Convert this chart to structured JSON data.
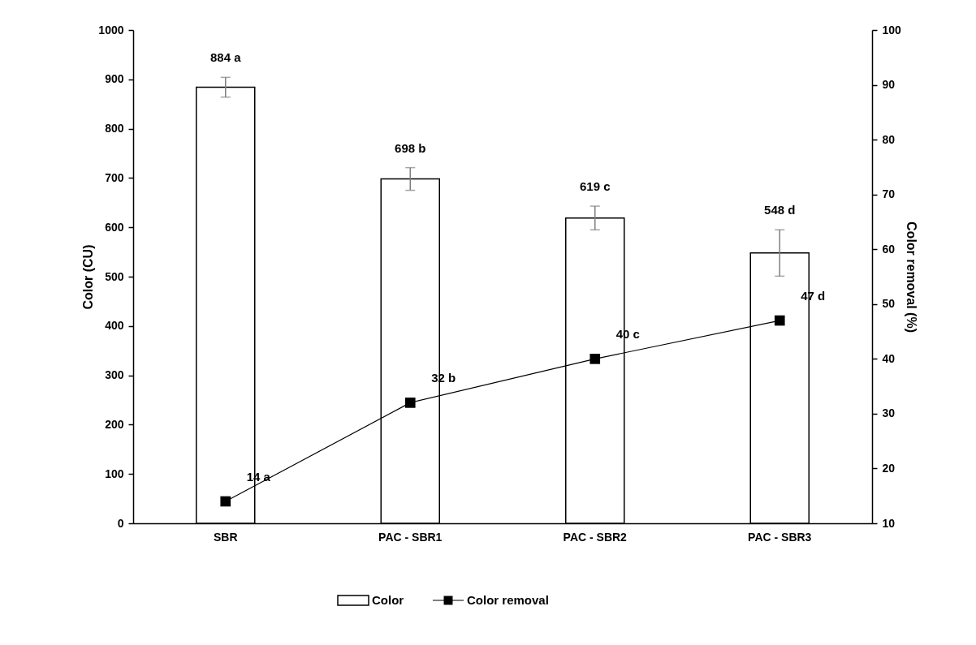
{
  "chart_data": {
    "type": "bar",
    "categories": [
      "SBR",
      "PAC - SBR1",
      "PAC - SBR2",
      "PAC - SBR3"
    ],
    "ylabel": "Color (CU)",
    "y2label": "Color removal (%)",
    "ylim": [
      0,
      1000
    ],
    "yticks": [
      0,
      100,
      200,
      300,
      400,
      500,
      600,
      700,
      800,
      900,
      1000
    ],
    "y2lim": [
      10,
      100
    ],
    "y2ticks": [
      10,
      20,
      30,
      40,
      50,
      60,
      70,
      80,
      90,
      100
    ],
    "series": [
      {
        "name": "Color",
        "color": "#ffffff",
        "values": [
          884,
          698,
          619,
          548
        ],
        "errors": [
          20,
          23,
          24,
          47
        ],
        "value_labels": [
          "884 a",
          "698 b",
          "619 c",
          "548 d"
        ]
      },
      {
        "name": "Color removal",
        "type": "line",
        "axis": "y2",
        "color": "#000000",
        "values": [
          14,
          32,
          40,
          47
        ],
        "value_labels": [
          "14 a",
          "32 b",
          "40 c",
          "47 d"
        ]
      }
    ],
    "marker": "square",
    "legend": "bottom",
    "grid": false
  }
}
